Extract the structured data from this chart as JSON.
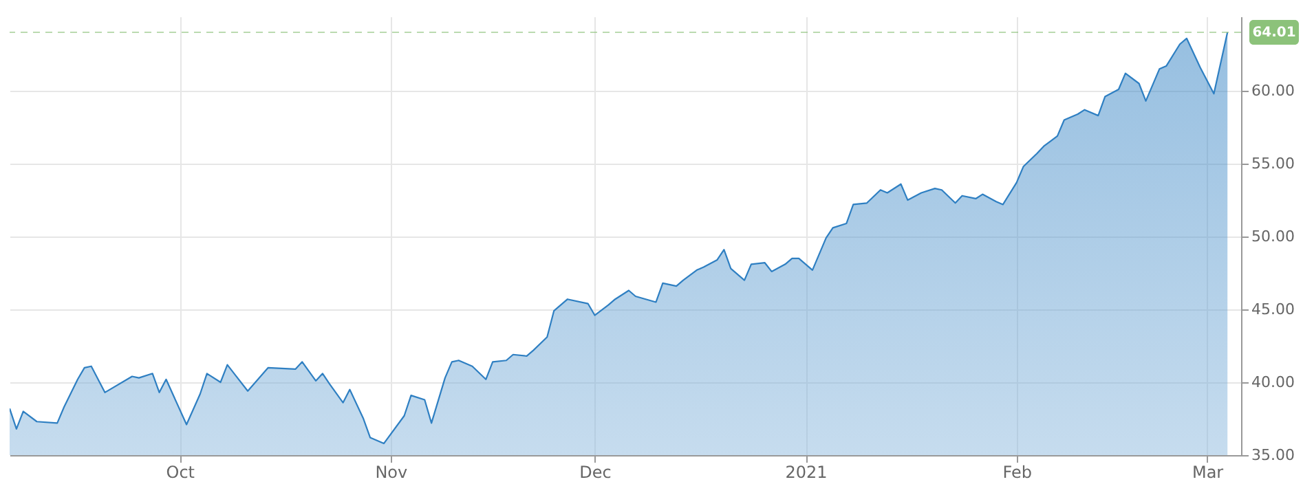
{
  "chart_data": {
    "type": "area",
    "x": [
      "2020-09-06",
      "2020-09-07",
      "2020-09-08",
      "2020-09-10",
      "2020-09-13",
      "2020-09-14",
      "2020-09-16",
      "2020-09-17",
      "2020-09-18",
      "2020-09-20",
      "2020-09-24",
      "2020-09-25",
      "2020-09-27",
      "2020-09-28",
      "2020-09-29",
      "2020-10-02",
      "2020-10-04",
      "2020-10-05",
      "2020-10-07",
      "2020-10-08",
      "2020-10-09",
      "2020-10-11",
      "2020-10-14",
      "2020-10-18",
      "2020-10-19",
      "2020-10-21",
      "2020-10-22",
      "2020-10-23",
      "2020-10-25",
      "2020-10-26",
      "2020-10-28",
      "2020-10-29",
      "2020-10-31",
      "2020-11-03",
      "2020-11-04",
      "2020-11-06",
      "2020-11-07",
      "2020-11-09",
      "2020-11-10",
      "2020-11-11",
      "2020-11-13",
      "2020-11-15",
      "2020-11-16",
      "2020-11-18",
      "2020-11-19",
      "2020-11-21",
      "2020-11-22",
      "2020-11-24",
      "2020-11-25",
      "2020-11-27",
      "2020-11-30",
      "2020-12-01",
      "2020-12-03",
      "2020-12-04",
      "2020-12-06",
      "2020-12-07",
      "2020-12-10",
      "2020-12-11",
      "2020-12-13",
      "2020-12-14",
      "2020-12-16",
      "2020-12-17",
      "2020-12-19",
      "2020-12-20",
      "2020-12-21",
      "2020-12-23",
      "2020-12-24",
      "2020-12-26",
      "2020-12-27",
      "2020-12-29",
      "2020-12-30",
      "2020-12-31",
      "2021-01-02",
      "2021-01-04",
      "2021-01-05",
      "2021-01-07",
      "2021-01-08",
      "2021-01-10",
      "2021-01-12",
      "2021-01-13",
      "2021-01-15",
      "2021-01-16",
      "2021-01-18",
      "2021-01-20",
      "2021-01-21",
      "2021-01-23",
      "2021-01-24",
      "2021-01-26",
      "2021-01-27",
      "2021-01-29",
      "2021-01-30",
      "2021-02-01",
      "2021-02-02",
      "2021-02-04",
      "2021-02-05",
      "2021-02-07",
      "2021-02-08",
      "2021-02-10",
      "2021-02-11",
      "2021-02-13",
      "2021-02-14",
      "2021-02-16",
      "2021-02-17",
      "2021-02-19",
      "2021-02-20",
      "2021-02-22",
      "2021-02-23",
      "2021-02-25",
      "2021-02-26",
      "2021-02-28",
      "2021-03-02",
      "2021-03-04"
    ],
    "series": [
      {
        "color": "#2e7fc2",
        "values": [
          38.2,
          36.8,
          38.0,
          37.3,
          37.2,
          38.3,
          40.2,
          41.0,
          41.1,
          39.3,
          40.4,
          40.3,
          40.6,
          39.3,
          40.2,
          37.1,
          39.2,
          40.6,
          40.0,
          41.2,
          40.6,
          39.4,
          41.0,
          40.9,
          41.4,
          40.1,
          40.6,
          39.9,
          38.6,
          39.5,
          37.5,
          36.2,
          35.8,
          37.7,
          39.1,
          38.8,
          37.2,
          40.3,
          41.4,
          41.5,
          41.1,
          40.2,
          41.4,
          41.5,
          41.9,
          41.8,
          42.2,
          43.1,
          44.9,
          45.7,
          45.4,
          44.6,
          45.3,
          45.7,
          46.3,
          45.9,
          45.5,
          46.8,
          46.6,
          47.0,
          47.7,
          47.9,
          48.4,
          49.1,
          47.8,
          47.0,
          48.1,
          48.2,
          47.6,
          48.1,
          48.5,
          48.5,
          47.7,
          49.9,
          50.6,
          50.9,
          52.2,
          52.3,
          53.2,
          53.0,
          53.6,
          52.5,
          53.0,
          53.3,
          53.2,
          52.3,
          52.8,
          52.6,
          52.9,
          52.4,
          52.2,
          53.7,
          54.8,
          55.7,
          56.2,
          56.9,
          58.0,
          58.4,
          58.7,
          58.3,
          59.6,
          60.1,
          61.2,
          60.5,
          59.3,
          61.5,
          61.7,
          63.2,
          63.6,
          61.6,
          59.8,
          64.01
        ]
      }
    ],
    "xlim": [
      "2020-09-06",
      "2021-03-06"
    ],
    "xticks": [
      {
        "value": "2020-10-01",
        "label": "Oct"
      },
      {
        "value": "2020-11-01",
        "label": "Nov"
      },
      {
        "value": "2020-12-01",
        "label": "Dec"
      },
      {
        "value": "2021-01-01",
        "label": "2021"
      },
      {
        "value": "2021-02-01",
        "label": "Feb"
      },
      {
        "value": "2021-03-01",
        "label": "Mar"
      }
    ],
    "ylim": [
      35,
      65.1
    ],
    "yticks": [
      {
        "value": 35,
        "label": "35.00"
      },
      {
        "value": 40,
        "label": "40.00"
      },
      {
        "value": 45,
        "label": "45.00"
      },
      {
        "value": 50,
        "label": "50.00"
      },
      {
        "value": 55,
        "label": "55.00"
      },
      {
        "value": 60,
        "label": "60.00"
      }
    ],
    "ref_lines": [
      {
        "axis": "y",
        "value": 64.01,
        "label": "64.01",
        "color": "#8cc27a",
        "line_style": "dashed"
      }
    ],
    "grid": true,
    "marker": "none",
    "line_style": "solid"
  }
}
